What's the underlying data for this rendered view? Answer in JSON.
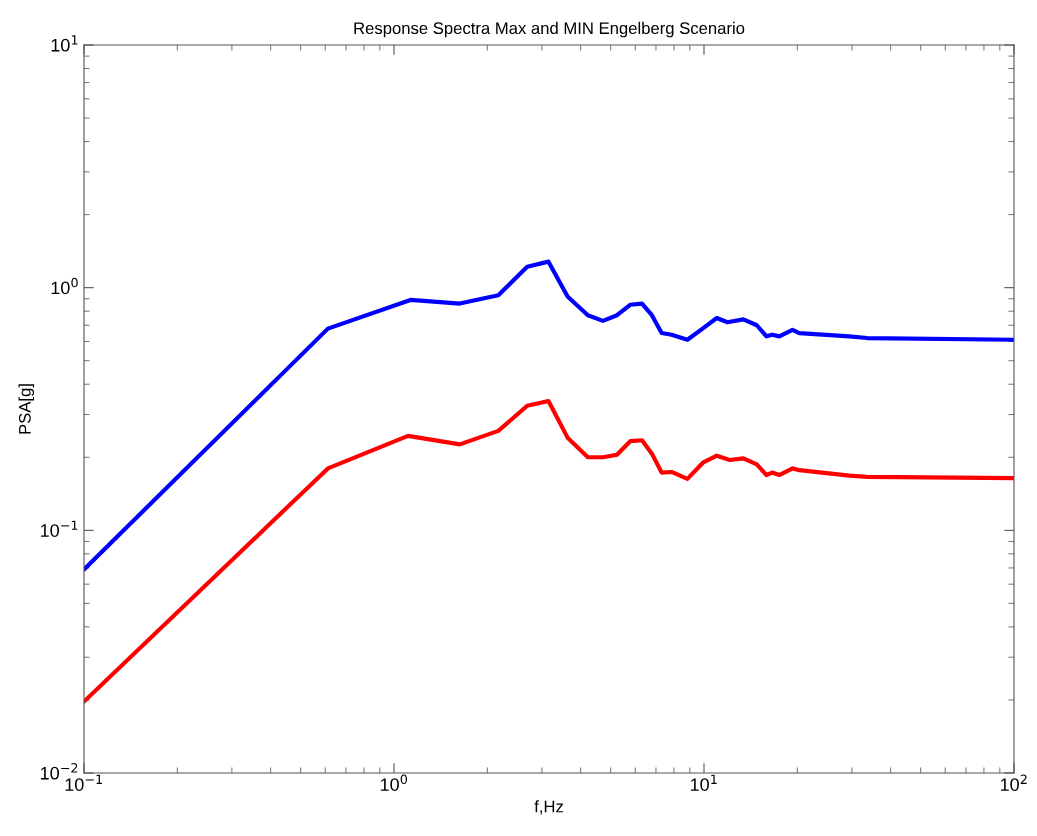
{
  "chart_data": {
    "type": "line",
    "title": "Response Spectra Max and MIN Engelberg Scenario",
    "xlabel": "f,Hz",
    "ylabel": "PSA[g]",
    "log": "xy",
    "grid": false,
    "legend": false,
    "xlim": [
      0.1,
      100
    ],
    "ylim": [
      0.01,
      10
    ],
    "xticks": [
      {
        "value": 0.1,
        "label": "10$^{−1}$"
      },
      {
        "value": 1,
        "label": "10$^{0}$"
      },
      {
        "value": 10,
        "label": "10$^{1}$"
      },
      {
        "value": 100,
        "label": "10$^{2}$"
      }
    ],
    "yticks": [
      {
        "value": 0.01,
        "label": "10$^{−2}$"
      },
      {
        "value": 0.1,
        "label": "10$^{−1}$"
      },
      {
        "value": 1,
        "label": "10$^{0}$"
      },
      {
        "value": 10,
        "label": "10$^{1}$"
      }
    ],
    "series": [
      {
        "color": "#0000ff",
        "x": [
          0.1,
          0.612,
          1.13,
          1.63,
          2.17,
          2.69,
          3.15,
          3.63,
          4.22,
          4.72,
          5.24,
          5.78,
          6.31,
          6.79,
          7.3,
          7.86,
          8.84,
          9.92,
          11.0,
          11.9,
          13.4,
          14.8,
          15.9,
          16.6,
          17.5,
          19.3,
          20.3,
          29.4,
          33.6,
          100
        ],
        "values": [
          0.069,
          0.678,
          0.89,
          0.86,
          0.93,
          1.22,
          1.28,
          0.92,
          0.77,
          0.73,
          0.77,
          0.85,
          0.86,
          0.77,
          0.65,
          0.64,
          0.61,
          0.68,
          0.75,
          0.72,
          0.74,
          0.7,
          0.63,
          0.64,
          0.63,
          0.67,
          0.65,
          0.63,
          0.62,
          0.61
        ]
      },
      {
        "color": "#ff0000",
        "x": [
          0.1,
          0.612,
          1.11,
          1.63,
          2.17,
          2.69,
          3.15,
          3.63,
          4.22,
          4.72,
          5.24,
          5.78,
          6.31,
          6.79,
          7.3,
          7.86,
          8.84,
          9.92,
          11.0,
          12.1,
          13.4,
          14.8,
          15.9,
          16.6,
          17.5,
          19.3,
          20.3,
          29.4,
          33.6,
          100
        ],
        "values": [
          0.0197,
          0.18,
          0.245,
          0.226,
          0.257,
          0.326,
          0.341,
          0.241,
          0.2,
          0.2,
          0.205,
          0.233,
          0.235,
          0.207,
          0.173,
          0.174,
          0.163,
          0.19,
          0.203,
          0.195,
          0.198,
          0.187,
          0.169,
          0.173,
          0.169,
          0.18,
          0.177,
          0.168,
          0.166,
          0.164
        ]
      }
    ]
  }
}
